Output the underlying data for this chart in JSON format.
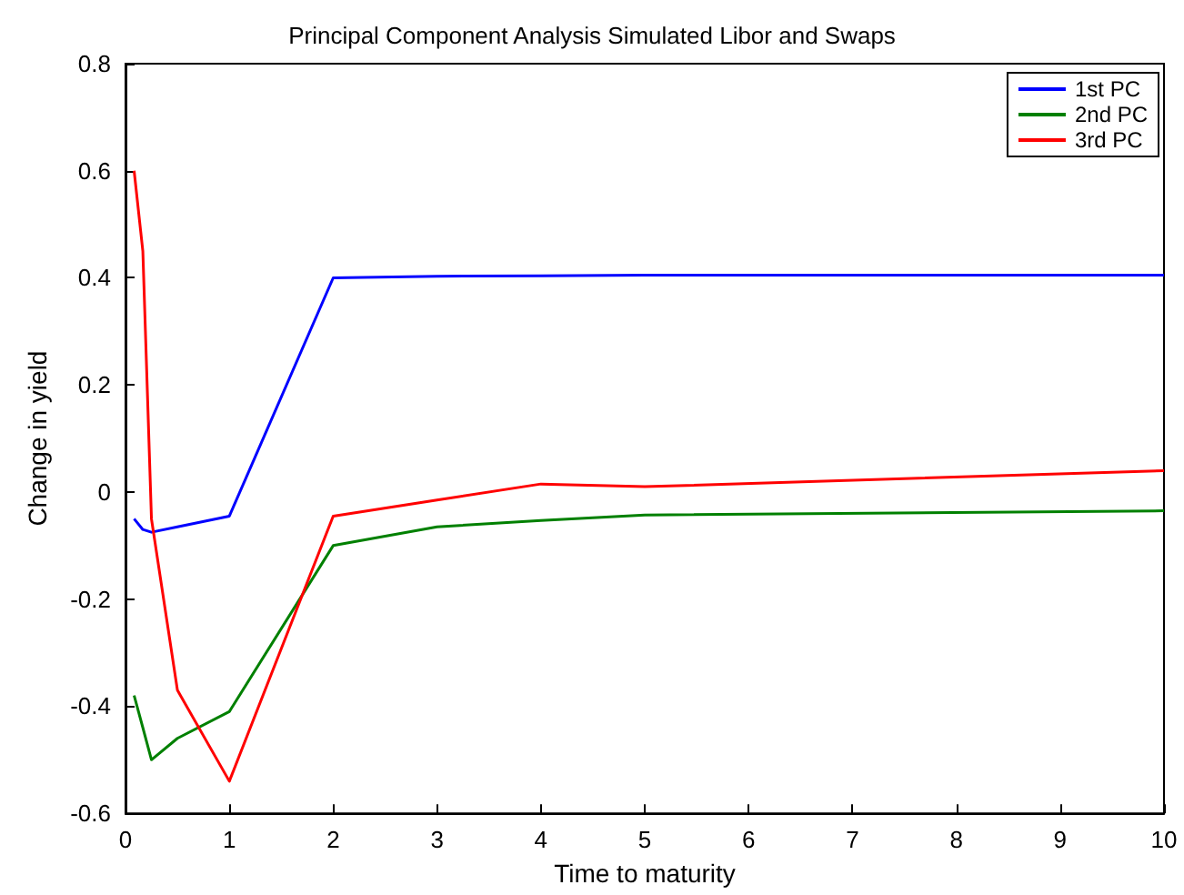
{
  "chart_data": {
    "type": "line",
    "title": "Principal Component Analysis Simulated Libor and Swaps",
    "xlabel": "Time to maturity",
    "ylabel": "Change in yield",
    "x": [
      0.083,
      0.167,
      0.25,
      0.5,
      1,
      2,
      3,
      4,
      5,
      10
    ],
    "series": [
      {
        "name": "1st PC",
        "color": "#0000ff",
        "values": [
          -0.05,
          -0.07,
          -0.075,
          -0.065,
          -0.045,
          0.4,
          0.403,
          0.404,
          0.405,
          0.405
        ]
      },
      {
        "name": "2nd PC",
        "color": "#008000",
        "values": [
          -0.38,
          -0.44,
          -0.5,
          -0.46,
          -0.41,
          -0.1,
          -0.065,
          -0.053,
          -0.043,
          -0.035
        ]
      },
      {
        "name": "3rd PC",
        "color": "#ff0000",
        "values": [
          0.6,
          0.45,
          -0.05,
          -0.37,
          -0.54,
          -0.045,
          -0.015,
          0.015,
          0.01,
          0.04
        ]
      }
    ],
    "xlim": [
      0,
      10
    ],
    "xticks": [
      0,
      1,
      2,
      3,
      4,
      5,
      6,
      7,
      8,
      9,
      10
    ],
    "ylim": [
      -0.6,
      0.8
    ],
    "yticks": [
      -0.6,
      -0.4,
      -0.2,
      0,
      0.2,
      0.4,
      0.6,
      0.8
    ],
    "grid": false,
    "legend": "top right",
    "marker": "none",
    "line_style": "solid"
  }
}
